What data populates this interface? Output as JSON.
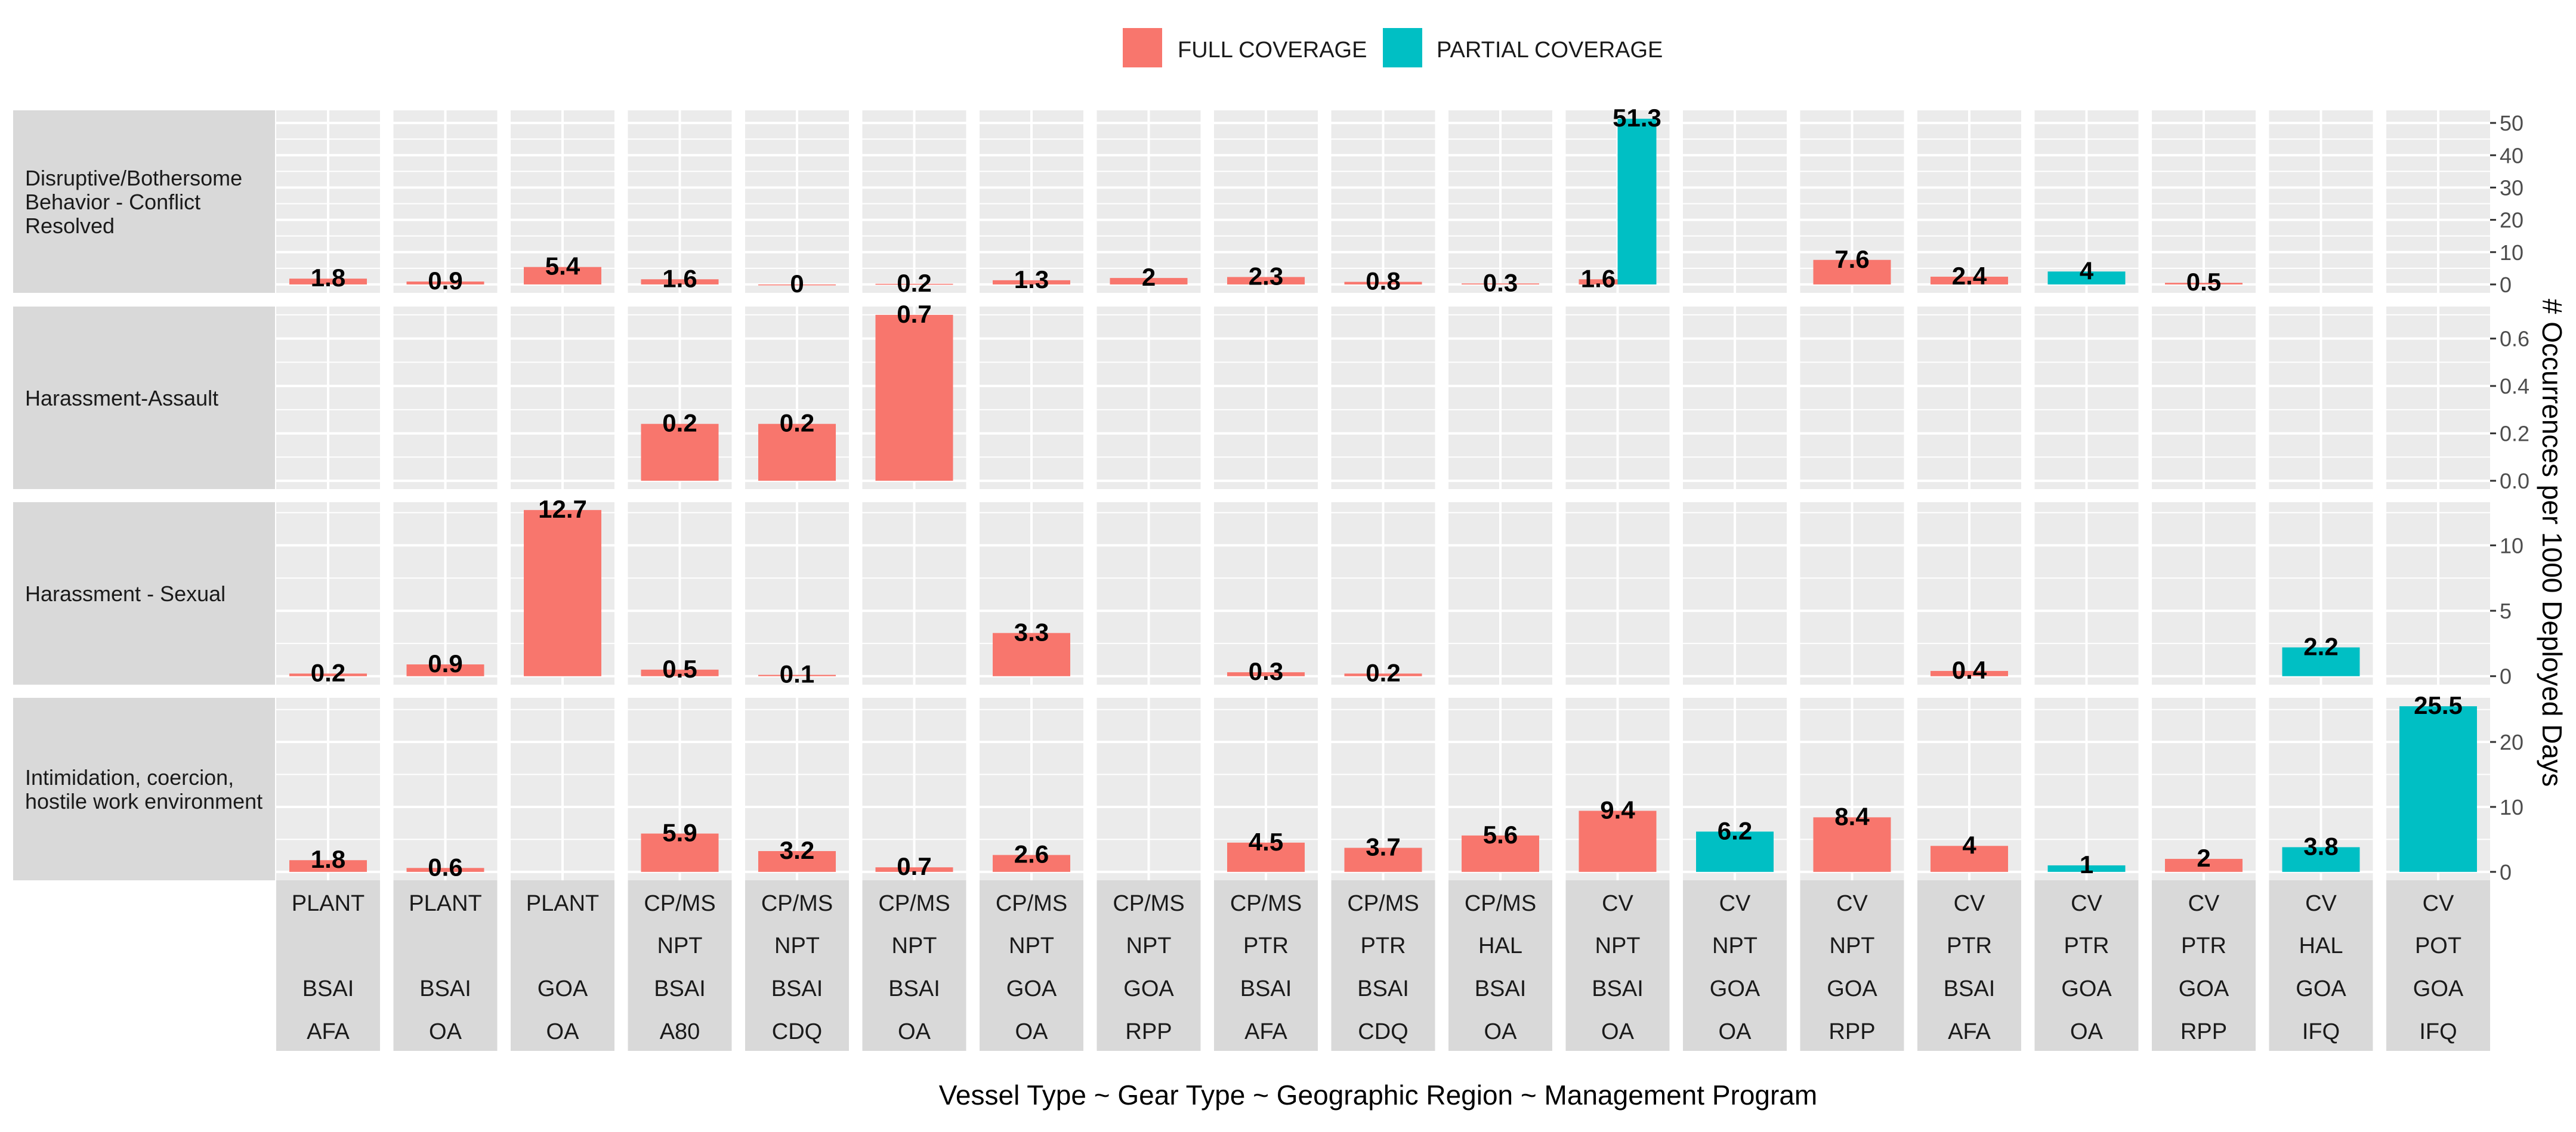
{
  "chart_data": {
    "type": "bar",
    "legend": {
      "placement": "top",
      "entries": [
        {
          "label": "FULL COVERAGE",
          "color": "#F8766D"
        },
        {
          "label": "PARTIAL COVERAGE",
          "color": "#00BFC4"
        }
      ]
    },
    "xlabel": "Vessel Type ~ Gear Type ~ Geographic Region ~ Management Program",
    "ylabel": "# Occurrences per 1000 Deployed Days",
    "columns": [
      {
        "lines": [
          "PLANT",
          "",
          "BSAI",
          "AFA"
        ]
      },
      {
        "lines": [
          "PLANT",
          "",
          "BSAI",
          "OA"
        ]
      },
      {
        "lines": [
          "PLANT",
          "",
          "GOA",
          "OA"
        ]
      },
      {
        "lines": [
          "CP/MS",
          "NPT",
          "BSAI",
          "A80"
        ]
      },
      {
        "lines": [
          "CP/MS",
          "NPT",
          "BSAI",
          "CDQ"
        ]
      },
      {
        "lines": [
          "CP/MS",
          "NPT",
          "BSAI",
          "OA"
        ]
      },
      {
        "lines": [
          "CP/MS",
          "NPT",
          "GOA",
          "OA"
        ]
      },
      {
        "lines": [
          "CP/MS",
          "NPT",
          "GOA",
          "RPP"
        ]
      },
      {
        "lines": [
          "CP/MS",
          "PTR",
          "BSAI",
          "AFA"
        ]
      },
      {
        "lines": [
          "CP/MS",
          "PTR",
          "BSAI",
          "CDQ"
        ]
      },
      {
        "lines": [
          "CP/MS",
          "HAL",
          "BSAI",
          "OA"
        ]
      },
      {
        "lines": [
          "CV",
          "NPT",
          "BSAI",
          "OA"
        ]
      },
      {
        "lines": [
          "CV",
          "NPT",
          "GOA",
          "OA"
        ]
      },
      {
        "lines": [
          "CV",
          "NPT",
          "GOA",
          "RPP"
        ]
      },
      {
        "lines": [
          "CV",
          "PTR",
          "BSAI",
          "AFA"
        ]
      },
      {
        "lines": [
          "CV",
          "PTR",
          "GOA",
          "OA"
        ]
      },
      {
        "lines": [
          "CV",
          "PTR",
          "GOA",
          "RPP"
        ]
      },
      {
        "lines": [
          "CV",
          "HAL",
          "GOA",
          "IFQ"
        ]
      },
      {
        "lines": [
          "CV",
          "POT",
          "GOA",
          "IFQ"
        ]
      }
    ],
    "rows": [
      {
        "label_lines": [
          "Disruptive/Bothersome",
          "Behavior - Conflict",
          "Resolved"
        ],
        "ylim": [
          -2.6,
          53.9
        ],
        "yticks": [
          0,
          10,
          20,
          30,
          40,
          50
        ],
        "bars": [
          {
            "col": 0,
            "value": 1.8,
            "label": "1.8",
            "coverage": "full"
          },
          {
            "col": 1,
            "value": 0.9,
            "label": "0.9",
            "coverage": "full"
          },
          {
            "col": 2,
            "value": 5.4,
            "label": "5.4",
            "coverage": "full"
          },
          {
            "col": 3,
            "value": 1.6,
            "label": "1.6",
            "coverage": "full"
          },
          {
            "col": 4,
            "value": 0,
            "label": "0",
            "coverage": "full"
          },
          {
            "col": 5,
            "value": 0.2,
            "label": "0.2",
            "coverage": "full"
          },
          {
            "col": 6,
            "value": 1.3,
            "label": "1.3",
            "coverage": "full"
          },
          {
            "col": 7,
            "value": 2,
            "label": "2",
            "coverage": "full"
          },
          {
            "col": 8,
            "value": 2.3,
            "label": "2.3",
            "coverage": "full"
          },
          {
            "col": 9,
            "value": 0.8,
            "label": "0.8",
            "coverage": "full"
          },
          {
            "col": 10,
            "value": 0.3,
            "label": "0.3",
            "coverage": "full"
          },
          {
            "col": 11,
            "value": 1.6,
            "label": "1.6",
            "coverage": "full",
            "dodge": "left"
          },
          {
            "col": 11,
            "value": 51.3,
            "label": "51.3",
            "coverage": "partial",
            "dodge": "right"
          },
          {
            "col": 13,
            "value": 7.6,
            "label": "7.6",
            "coverage": "full"
          },
          {
            "col": 14,
            "value": 2.4,
            "label": "2.4",
            "coverage": "full"
          },
          {
            "col": 15,
            "value": 4,
            "label": "4",
            "coverage": "partial"
          },
          {
            "col": 16,
            "value": 0.5,
            "label": "0.5",
            "coverage": "full"
          }
        ]
      },
      {
        "label_lines": [
          "Harassment-Assault"
        ],
        "ylim": [
          -0.035,
          0.735
        ],
        "yticks": [
          0.0,
          0.2,
          0.4,
          0.6
        ],
        "tick_format": "fixed1",
        "bars": [
          {
            "col": 3,
            "value": 0.24,
            "label": "0.2",
            "coverage": "full"
          },
          {
            "col": 4,
            "value": 0.24,
            "label": "0.2",
            "coverage": "full"
          },
          {
            "col": 5,
            "value": 0.7,
            "label": "0.7",
            "coverage": "full"
          }
        ]
      },
      {
        "label_lines": [
          "Harassment - Sexual"
        ],
        "ylim": [
          -0.65,
          13.3
        ],
        "yticks": [
          0,
          5,
          10
        ],
        "bars": [
          {
            "col": 0,
            "value": 0.2,
            "label": "0.2",
            "coverage": "full"
          },
          {
            "col": 1,
            "value": 0.9,
            "label": "0.9",
            "coverage": "full"
          },
          {
            "col": 2,
            "value": 12.7,
            "label": "12.7",
            "coverage": "full"
          },
          {
            "col": 3,
            "value": 0.5,
            "label": "0.5",
            "coverage": "full"
          },
          {
            "col": 4,
            "value": 0.1,
            "label": "0.1",
            "coverage": "full"
          },
          {
            "col": 6,
            "value": 3.3,
            "label": "3.3",
            "coverage": "full"
          },
          {
            "col": 8,
            "value": 0.3,
            "label": "0.3",
            "coverage": "full"
          },
          {
            "col": 9,
            "value": 0.2,
            "label": "0.2",
            "coverage": "full"
          },
          {
            "col": 14,
            "value": 0.4,
            "label": "0.4",
            "coverage": "full"
          },
          {
            "col": 17,
            "value": 2.2,
            "label": "2.2",
            "coverage": "partial"
          }
        ]
      },
      {
        "label_lines": [
          "Intimidation, coercion,",
          "hostile work environment"
        ],
        "ylim": [
          -1.3,
          26.8
        ],
        "yticks": [
          0,
          10,
          20
        ],
        "bars": [
          {
            "col": 0,
            "value": 1.8,
            "label": "1.8",
            "coverage": "full"
          },
          {
            "col": 1,
            "value": 0.6,
            "label": "0.6",
            "coverage": "full"
          },
          {
            "col": 3,
            "value": 5.9,
            "label": "5.9",
            "coverage": "full"
          },
          {
            "col": 4,
            "value": 3.2,
            "label": "3.2",
            "coverage": "full"
          },
          {
            "col": 5,
            "value": 0.7,
            "label": "0.7",
            "coverage": "full"
          },
          {
            "col": 6,
            "value": 2.6,
            "label": "2.6",
            "coverage": "full"
          },
          {
            "col": 8,
            "value": 4.5,
            "label": "4.5",
            "coverage": "full"
          },
          {
            "col": 9,
            "value": 3.7,
            "label": "3.7",
            "coverage": "full"
          },
          {
            "col": 10,
            "value": 5.6,
            "label": "5.6",
            "coverage": "full"
          },
          {
            "col": 11,
            "value": 9.4,
            "label": "9.4",
            "coverage": "full"
          },
          {
            "col": 12,
            "value": 6.2,
            "label": "6.2",
            "coverage": "partial"
          },
          {
            "col": 13,
            "value": 8.4,
            "label": "8.4",
            "coverage": "full"
          },
          {
            "col": 14,
            "value": 4,
            "label": "4",
            "coverage": "full"
          },
          {
            "col": 15,
            "value": 1,
            "label": "1",
            "coverage": "partial"
          },
          {
            "col": 16,
            "value": 2,
            "label": "2",
            "coverage": "full"
          },
          {
            "col": 17,
            "value": 3.8,
            "label": "3.8",
            "coverage": "partial"
          },
          {
            "col": 18,
            "value": 25.5,
            "label": "25.5",
            "coverage": "partial"
          }
        ]
      }
    ]
  }
}
